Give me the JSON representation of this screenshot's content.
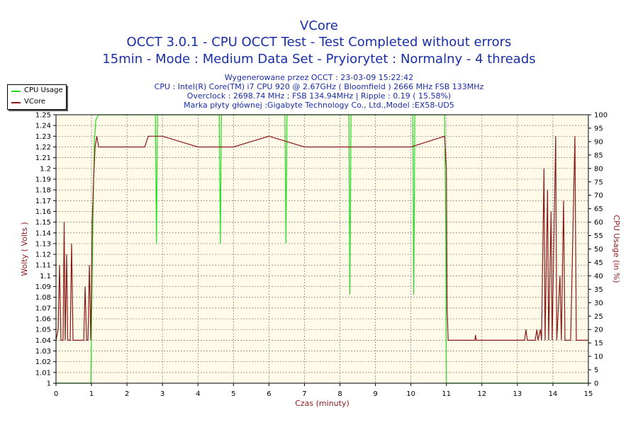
{
  "chart_data": {
    "type": "line",
    "title": "VCore",
    "subtitle_lines": [
      "OCCT 3.0.1 - CPU OCCT Test - Test Completed without errors",
      "15min - Mode : Medium Data Set - Pryiorytet : Normalny - 4 threads"
    ],
    "info_lines": [
      "Wygenerowane przez OCCT : 23-03-09 15:22:42",
      "CPU : Intel(R) Core(TM) i7 CPU 920 @ 2.67GHz ( Bloomfield ) 2666 MHz FSB 133MHz",
      "Overclock : 2698.74 MHz ; FSB 134.94MHz | Ripple : 0.19 ( 15.58%)",
      "Marka płyty głównej :Gigabyte Technology Co., Ltd.,Model :EX58-UD5"
    ],
    "xlabel": "Czas (minuty)",
    "ylabel_left": "Wolty ( Volts )",
    "ylabel_right": "CPU Usage (in %)",
    "xlim": [
      0,
      15
    ],
    "ylim_left": [
      1.0,
      1.25
    ],
    "ylim_right": [
      0,
      100
    ],
    "x_ticks": [
      "0",
      "1",
      "2",
      "3",
      "4",
      "5",
      "6",
      "7",
      "8",
      "9",
      "10",
      "11",
      "12",
      "13",
      "14",
      "15"
    ],
    "y_left_ticks": [
      "1",
      "1.01",
      "1.02",
      "1.03",
      "1.04",
      "1.05",
      "1.06",
      "1.07",
      "1.08",
      "1.09",
      "1.1",
      "1.11",
      "1.12",
      "1.13",
      "1.14",
      "1.15",
      "1.16",
      "1.17",
      "1.18",
      "1.19",
      "1.2",
      "1.21",
      "1.22",
      "1.23",
      "1.24",
      "1.25"
    ],
    "y_right_ticks": [
      "0",
      "5",
      "10",
      "15",
      "20",
      "25",
      "30",
      "35",
      "40",
      "45",
      "50",
      "55",
      "60",
      "65",
      "70",
      "75",
      "80",
      "85",
      "90",
      "95",
      "100"
    ],
    "grid": true,
    "legend_position": "top-left",
    "series": [
      {
        "name": "CPU Usage",
        "axis": "right",
        "color": "#22dd22",
        "points": [
          [
            0,
            0
          ],
          [
            0.98,
            0
          ],
          [
            1.0,
            20
          ],
          [
            1.04,
            60
          ],
          [
            1.08,
            90
          ],
          [
            1.12,
            98
          ],
          [
            1.2,
            100
          ],
          [
            2.0,
            100
          ],
          [
            2.8,
            100
          ],
          [
            2.83,
            52
          ],
          [
            2.86,
            100
          ],
          [
            4.6,
            100
          ],
          [
            4.63,
            52
          ],
          [
            4.66,
            100
          ],
          [
            6.45,
            100
          ],
          [
            6.48,
            52
          ],
          [
            6.51,
            100
          ],
          [
            8.25,
            100
          ],
          [
            8.28,
            33
          ],
          [
            8.31,
            100
          ],
          [
            10.05,
            100
          ],
          [
            10.08,
            33
          ],
          [
            10.11,
            100
          ],
          [
            10.95,
            100
          ],
          [
            10.98,
            60
          ],
          [
            11.0,
            0
          ],
          [
            15,
            0
          ]
        ]
      },
      {
        "name": "VCore",
        "axis": "left",
        "color": "#8b1a1a",
        "points": [
          [
            0,
            1.04
          ],
          [
            0.06,
            1.05
          ],
          [
            0.1,
            1.11
          ],
          [
            0.14,
            1.04
          ],
          [
            0.2,
            1.04
          ],
          [
            0.23,
            1.15
          ],
          [
            0.26,
            1.04
          ],
          [
            0.3,
            1.12
          ],
          [
            0.33,
            1.04
          ],
          [
            0.4,
            1.04
          ],
          [
            0.44,
            1.13
          ],
          [
            0.48,
            1.04
          ],
          [
            0.55,
            1.04
          ],
          [
            0.6,
            1.04
          ],
          [
            0.7,
            1.04
          ],
          [
            0.78,
            1.04
          ],
          [
            0.82,
            1.09
          ],
          [
            0.86,
            1.04
          ],
          [
            0.9,
            1.04
          ],
          [
            0.94,
            1.11
          ],
          [
            0.98,
            1.04
          ],
          [
            1.02,
            1.15
          ],
          [
            1.06,
            1.19
          ],
          [
            1.1,
            1.22
          ],
          [
            1.15,
            1.23
          ],
          [
            1.2,
            1.22
          ],
          [
            1.3,
            1.22
          ],
          [
            1.5,
            1.22
          ],
          [
            2.0,
            1.22
          ],
          [
            2.5,
            1.22
          ],
          [
            2.6,
            1.23
          ],
          [
            3.0,
            1.23
          ],
          [
            4.0,
            1.22
          ],
          [
            5.0,
            1.22
          ],
          [
            6.0,
            1.23
          ],
          [
            7.0,
            1.22
          ],
          [
            8.0,
            1.22
          ],
          [
            9.0,
            1.22
          ],
          [
            10.0,
            1.22
          ],
          [
            10.95,
            1.23
          ],
          [
            11.0,
            1.2
          ],
          [
            11.02,
            1.07
          ],
          [
            11.05,
            1.04
          ],
          [
            11.8,
            1.04
          ],
          [
            11.82,
            1.045
          ],
          [
            11.84,
            1.04
          ],
          [
            13.2,
            1.04
          ],
          [
            13.24,
            1.05
          ],
          [
            13.28,
            1.04
          ],
          [
            13.5,
            1.04
          ],
          [
            13.55,
            1.05
          ],
          [
            13.58,
            1.04
          ],
          [
            13.65,
            1.05
          ],
          [
            13.68,
            1.04
          ],
          [
            13.75,
            1.2
          ],
          [
            13.78,
            1.04
          ],
          [
            13.85,
            1.18
          ],
          [
            13.88,
            1.04
          ],
          [
            13.95,
            1.16
          ],
          [
            13.98,
            1.04
          ],
          [
            14.08,
            1.23
          ],
          [
            14.11,
            1.04
          ],
          [
            14.2,
            1.1
          ],
          [
            14.24,
            1.04
          ],
          [
            14.3,
            1.17
          ],
          [
            14.34,
            1.04
          ],
          [
            14.5,
            1.04
          ],
          [
            14.62,
            1.23
          ],
          [
            14.66,
            1.04
          ],
          [
            15,
            1.04
          ]
        ]
      }
    ]
  }
}
